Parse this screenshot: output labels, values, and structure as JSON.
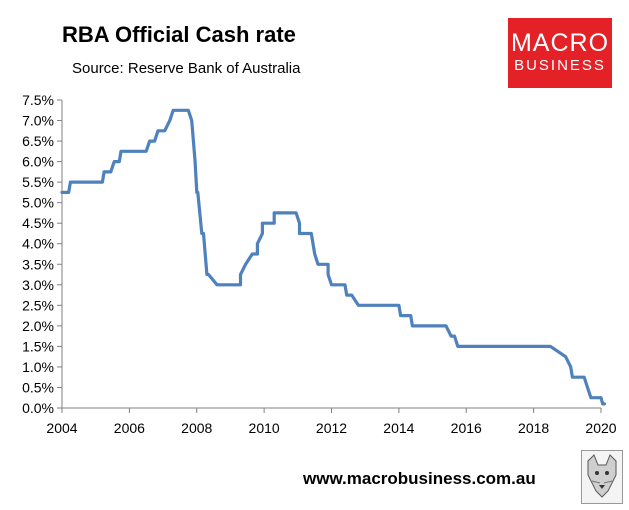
{
  "brand": {
    "logo_line1": "MACRO",
    "logo_line2": "BUSINESS",
    "logo_color": "#e32127",
    "website": "www.macrobusiness.com.au",
    "mascot_icon": "wolf-icon"
  },
  "chart_data": {
    "type": "line",
    "title": "RBA Official Cash rate",
    "subtitle": "Source: Reserve Bank of Australia",
    "xlabel": "",
    "ylabel": "",
    "xlim": [
      2004,
      2020
    ],
    "ylim": [
      0,
      7.5
    ],
    "x_ticks": [
      "2004",
      "2006",
      "2008",
      "2010",
      "2012",
      "2014",
      "2016",
      "2018",
      "2020"
    ],
    "y_ticks": [
      "0.0%",
      "0.5%",
      "1.0%",
      "1.5%",
      "2.0%",
      "2.5%",
      "3.0%",
      "3.5%",
      "4.0%",
      "4.5%",
      "5.0%",
      "5.5%",
      "6.0%",
      "6.5%",
      "7.0%",
      "7.5%"
    ],
    "grid": false,
    "legend": "none",
    "line_color": "#4f81bd",
    "series": [
      {
        "x": [
          2004.0,
          2004.2,
          2004.25,
          2005.1,
          2005.2,
          2005.25,
          2005.45,
          2005.55,
          2005.7,
          2005.75,
          2006.5,
          2006.6,
          2006.75,
          2006.85,
          2007.05,
          2007.2,
          2007.3,
          2007.75,
          2007.85,
          2007.95,
          2008.0,
          2008.03,
          2008.15,
          2008.2,
          2008.3,
          2008.35,
          2008.6,
          2008.6,
          2008.75,
          2008.9,
          2009.3,
          2009.3,
          2009.45,
          2009.65,
          2009.8,
          2009.8,
          2009.95,
          2009.95,
          2010.3,
          2010.3,
          2010.95,
          2010.95,
          2011.05,
          2011.05,
          2011.4,
          2011.5,
          2011.6,
          2011.9,
          2011.9,
          2012.0,
          2012.1,
          2012.4,
          2012.45,
          2012.6,
          2012.8,
          2013.4,
          2013.4,
          2014.0,
          2014.05,
          2014.35,
          2014.4,
          2015.3,
          2015.4,
          2015.55,
          2015.65,
          2015.75,
          2018.5,
          2018.5,
          2018.95,
          2019.1,
          2019.15,
          2019.5,
          2019.6,
          2019.7,
          2020.0,
          2020.05,
          2020.1
        ],
        "y": [
          5.25,
          5.25,
          5.5,
          5.5,
          5.5,
          5.75,
          5.75,
          6.0,
          6.0,
          6.25,
          6.25,
          6.5,
          6.5,
          6.75,
          6.75,
          7.0,
          7.25,
          7.25,
          7.0,
          6.0,
          5.25,
          5.25,
          4.25,
          4.25,
          3.25,
          3.25,
          3.0,
          3.0,
          3.0,
          3.0,
          3.0,
          3.25,
          3.5,
          3.75,
          3.75,
          4.0,
          4.25,
          4.5,
          4.5,
          4.75,
          4.75,
          4.75,
          4.5,
          4.25,
          4.25,
          3.75,
          3.5,
          3.5,
          3.25,
          3.0,
          3.0,
          3.0,
          2.75,
          2.75,
          2.5,
          2.5,
          2.5,
          2.5,
          2.25,
          2.25,
          2.0,
          2.0,
          2.0,
          1.75,
          1.75,
          1.5,
          1.5,
          1.5,
          1.25,
          1.0,
          0.75,
          0.75,
          0.5,
          0.25,
          0.25,
          0.1,
          0.1
        ]
      }
    ]
  }
}
